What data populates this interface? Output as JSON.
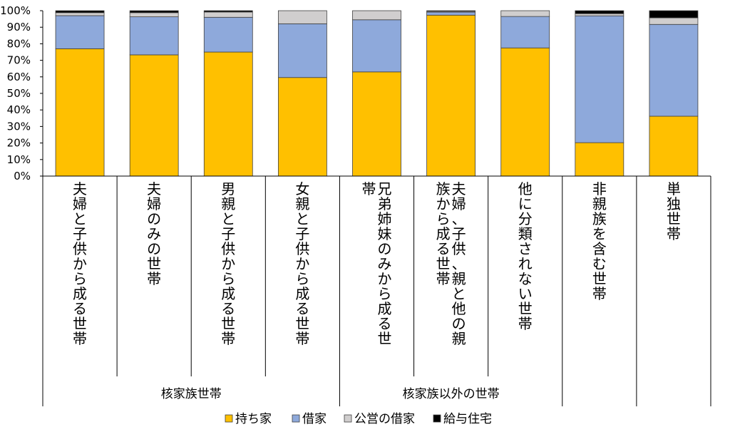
{
  "chart_data": {
    "type": "bar",
    "stacked": true,
    "yticks": [
      "0%",
      "10%",
      "20%",
      "30%",
      "40%",
      "50%",
      "60%",
      "70%",
      "80%",
      "90%",
      "100%"
    ],
    "ylim": [
      0,
      100
    ],
    "grid": false,
    "legend_position": "bottom",
    "categories": [
      "夫婦と子供から成る世帯",
      "夫婦のみの世帯",
      "男親と子供から成る世帯",
      "女親と子供から成る世帯",
      "兄弟姉妹のみから成る世帯",
      "夫婦、子供、親と他の親族から成る世帯",
      "他に分類されない世帯",
      "非親族を含む世帯",
      "単独世帯"
    ],
    "groups": [
      {
        "label": "核家族世帯",
        "members": [
          0,
          1,
          2,
          3
        ]
      },
      {
        "label": "核家族以外の世帯",
        "members": [
          4,
          5,
          6
        ]
      }
    ],
    "series": [
      {
        "name": "持ち家",
        "color": "#FFC000",
        "values": [
          77.0,
          73.3,
          75.0,
          59.6,
          63.0,
          97.3,
          77.5,
          20.2,
          36.2
        ]
      },
      {
        "name": "借家",
        "color": "#8EA9DB",
        "values": [
          20.0,
          23.0,
          21.0,
          32.5,
          31.5,
          1.8,
          19.0,
          76.7,
          55.5
        ]
      },
      {
        "name": "公営の借家",
        "color": "#D0CECE",
        "values": [
          1.8,
          2.5,
          3.2,
          7.9,
          5.5,
          0.5,
          3.5,
          1.3,
          4.0
        ]
      },
      {
        "name": "給与住宅",
        "color": "#000000",
        "values": [
          1.2,
          1.2,
          0.8,
          0.0,
          0.0,
          0.4,
          0.0,
          1.8,
          4.3
        ]
      }
    ]
  }
}
